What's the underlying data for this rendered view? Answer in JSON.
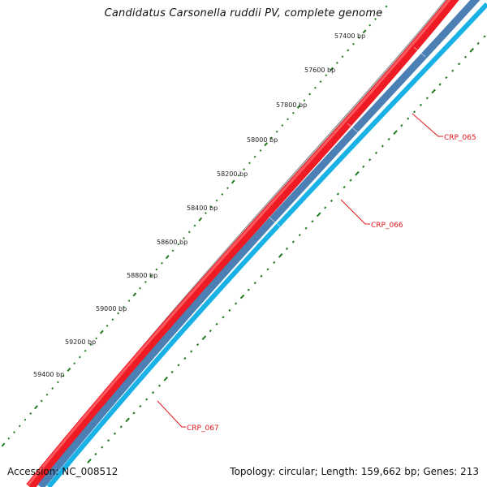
{
  "title": "Candidatus Carsonella ruddii PV, complete genome",
  "footer": {
    "accession": "Accession: NC_008512",
    "summary": "Topology: circular; Length: 159,662 bp; Genes: 213"
  },
  "tick_labels": [
    "57400 bp",
    "57600 bp",
    "57800 bp",
    "58000 bp",
    "58200 bp",
    "58400 bp",
    "58600 bp",
    "58800 bp",
    "59000 bp",
    "59200 bp",
    "59400 bp"
  ],
  "genes": [
    {
      "name": "CRP_065"
    },
    {
      "name": "CRP_066"
    },
    {
      "name": "CRP_067"
    }
  ],
  "colors": {
    "backbone": "#7d7a7b",
    "forward_cds": "#ee1b24",
    "reverse_cds": "#4c80b5",
    "reverse_cds_outer": "#19b2e6",
    "ticks": "#1f7a1f",
    "gene_label": "#e0161b"
  }
}
